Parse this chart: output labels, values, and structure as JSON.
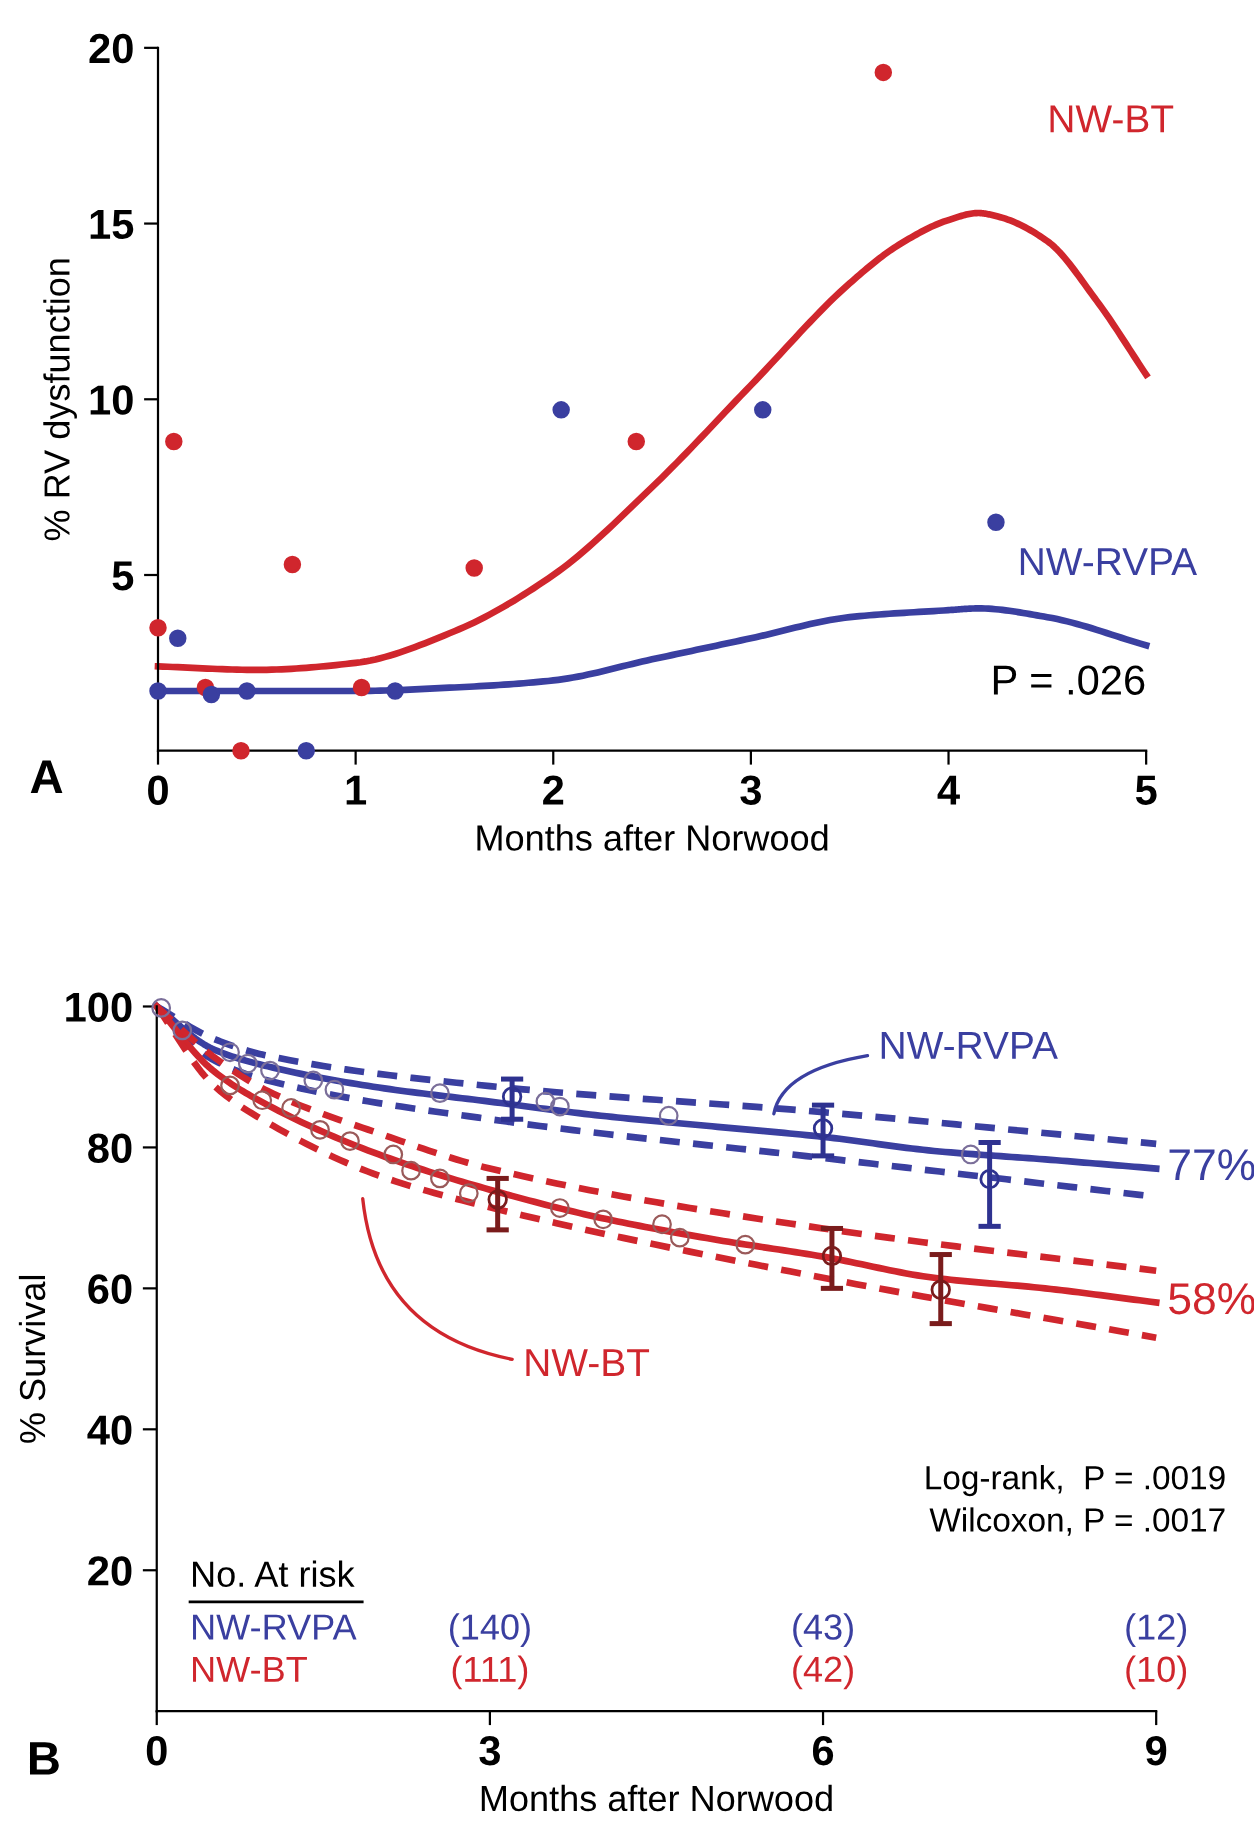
{
  "chart_data": [
    {
      "type": "line",
      "xlabel": "Months after Norwood",
      "ylabel": "% RV dysfunction",
      "xlim": [
        0,
        5
      ],
      "ylim": [
        0,
        20
      ],
      "xticks": [
        0,
        1,
        2,
        3,
        4,
        5
      ],
      "yticks": [
        5,
        10,
        15,
        20
      ],
      "grid": false,
      "legend": false,
      "line_style": "solid",
      "annotations": [
        "A",
        "P = .026"
      ],
      "series": [
        {
          "name": "NW-BT",
          "color": "#d0262d",
          "x": [
            0,
            0.5,
            1,
            1.5,
            2,
            2.5,
            3,
            3.5,
            3.75,
            4,
            4.15,
            4.25,
            4.5,
            4.75,
            5
          ],
          "values": [
            2.4,
            2.3,
            2.5,
            3.4,
            5.0,
            7.5,
            10.4,
            13.3,
            14.4,
            15.1,
            15.3,
            15.2,
            14.5,
            12.8,
            10.7
          ]
        },
        {
          "name": "NW-RVPA",
          "color": "#3a3fa0",
          "x": [
            0,
            1,
            1.5,
            2,
            2.5,
            3,
            3.5,
            4,
            4.15,
            4.5,
            5
          ],
          "values": [
            1.7,
            1.7,
            1.8,
            2.0,
            2.6,
            3.2,
            3.8,
            4.0,
            4.05,
            3.8,
            3.0
          ]
        },
        {
          "type": "scatter",
          "marker": "circle",
          "color": "#d0262d",
          "x": [
            0,
            0.08,
            0.24,
            0.42,
            0.68,
            1.03,
            1.6,
            2.42,
            3.67
          ],
          "values": [
            3.5,
            8.8,
            1.8,
            0,
            5.3,
            1.8,
            5.2,
            8.8,
            19.3
          ]
        },
        {
          "type": "scatter",
          "marker": "circle",
          "color": "#3a3fa0",
          "x": [
            0,
            0.1,
            0.27,
            0.45,
            0.75,
            1.2,
            2.04,
            3.06,
            4.24
          ],
          "values": [
            1.7,
            3.2,
            1.6,
            1.7,
            0,
            1.7,
            9.7,
            9.7,
            6.5
          ]
        }
      ]
    },
    {
      "type": "line",
      "xlabel": "Months after Norwood",
      "ylabel": "% Survival",
      "xlim": [
        0,
        9
      ],
      "ylim": [
        0,
        100
      ],
      "xticks": [
        0,
        3,
        6,
        9
      ],
      "yticks": [
        20,
        40,
        60,
        80,
        100
      ],
      "grid": false,
      "legend": false,
      "annotations": [
        "B",
        {
          "text": "77%",
          "x": 9,
          "y": 77
        },
        {
          "text": "58%",
          "x": 9,
          "y": 58
        },
        "Log-rank,  P = .0019",
        "Wilcoxon, P = .0017",
        "No. At risk",
        "NW-RVPA",
        "NW-BT",
        "(140)",
        "(43)",
        "(12)",
        "(111)",
        "(42)",
        "(10)"
      ],
      "series": [
        {
          "name": "NW-RVPA",
          "line_style": "solid",
          "color": "#3a3fa0",
          "x": [
            0,
            0.5,
            1,
            2,
            3,
            4,
            5,
            6,
            7,
            8,
            9
          ],
          "values": [
            100,
            94,
            91.5,
            88.5,
            86.5,
            84.5,
            83,
            81.5,
            79.5,
            78.3,
            77
          ]
        },
        {
          "type": "line",
          "line_style": "dashed",
          "color": "#3a3fa0",
          "x": [
            0,
            0.5,
            1,
            3,
            6,
            9
          ],
          "values": [
            100,
            95.5,
            93,
            88.7,
            85,
            80.5
          ]
        },
        {
          "type": "line",
          "line_style": "dashed",
          "color": "#3a3fa0",
          "x": [
            0,
            0.5,
            1,
            3,
            6,
            9
          ],
          "values": [
            100,
            92.5,
            89.5,
            84,
            78.5,
            73
          ]
        },
        {
          "name": "NW-BT",
          "line_style": "solid",
          "color": "#d0262d",
          "x": [
            0,
            0.5,
            1,
            2,
            3,
            4,
            5,
            6,
            7,
            8,
            9
          ],
          "values": [
            100,
            91,
            86,
            79,
            74,
            70,
            67,
            64.5,
            61.5,
            60,
            58
          ]
        },
        {
          "type": "line",
          "line_style": "dashed",
          "color": "#d0262d",
          "x": [
            0,
            0.5,
            1,
            2,
            3,
            6,
            9
          ],
          "values": [
            100,
            93,
            88,
            82,
            77,
            68.5,
            62.5
          ]
        },
        {
          "type": "line",
          "line_style": "dashed",
          "color": "#d0262d",
          "x": [
            0,
            0.5,
            1,
            2,
            3,
            6,
            9
          ],
          "values": [
            100,
            89,
            83.5,
            76,
            71.5,
            61.5,
            53
          ]
        },
        {
          "type": "scatter",
          "marker": "circle",
          "color": "#7b6f9a",
          "x": [
            0.04,
            0.23,
            0.66,
            0.82,
            1.02,
            1.41,
            1.6,
            2.55,
            3.5,
            3.63,
            4.61,
            7.33
          ],
          "values": [
            99.8,
            96.6,
            93.5,
            91.9,
            90.9,
            89.5,
            88.2,
            87.7,
            86.5,
            85.8,
            84.5,
            79
          ]
        },
        {
          "type": "scatter",
          "marker": "circle",
          "color": "#9a5a5a",
          "x": [
            0.66,
            0.95,
            1.21,
            1.47,
            1.74,
            2.13,
            2.29,
            2.55,
            2.81,
            3.63,
            4.02,
            4.55,
            4.71,
            5.3
          ],
          "values": [
            88.8,
            86.7,
            85.6,
            82.5,
            80.9,
            79,
            76.7,
            75.6,
            73.5,
            71.4,
            69.8,
            69.1,
            67.2,
            66.2
          ]
        },
        {
          "type": "scatter",
          "marker": "circle",
          "color": "#2e3290",
          "x": [
            3.2,
            6.0,
            7.5
          ],
          "values": [
            87.2,
            82.7,
            75.5
          ],
          "errors": [
            [
              84.0,
              89.7
            ],
            [
              78.8,
              86.0
            ],
            [
              68.8,
              80.7
            ]
          ]
        },
        {
          "type": "scatter",
          "marker": "circle",
          "color": "#7a1c1c",
          "x": [
            3.07,
            6.08,
            7.06
          ],
          "values": [
            72.6,
            64.6,
            59.8
          ],
          "errors": [
            [
              68.3,
              75.6
            ],
            [
              60.0,
              68.5
            ],
            [
              55.0,
              64.8
            ]
          ]
        }
      ]
    }
  ]
}
